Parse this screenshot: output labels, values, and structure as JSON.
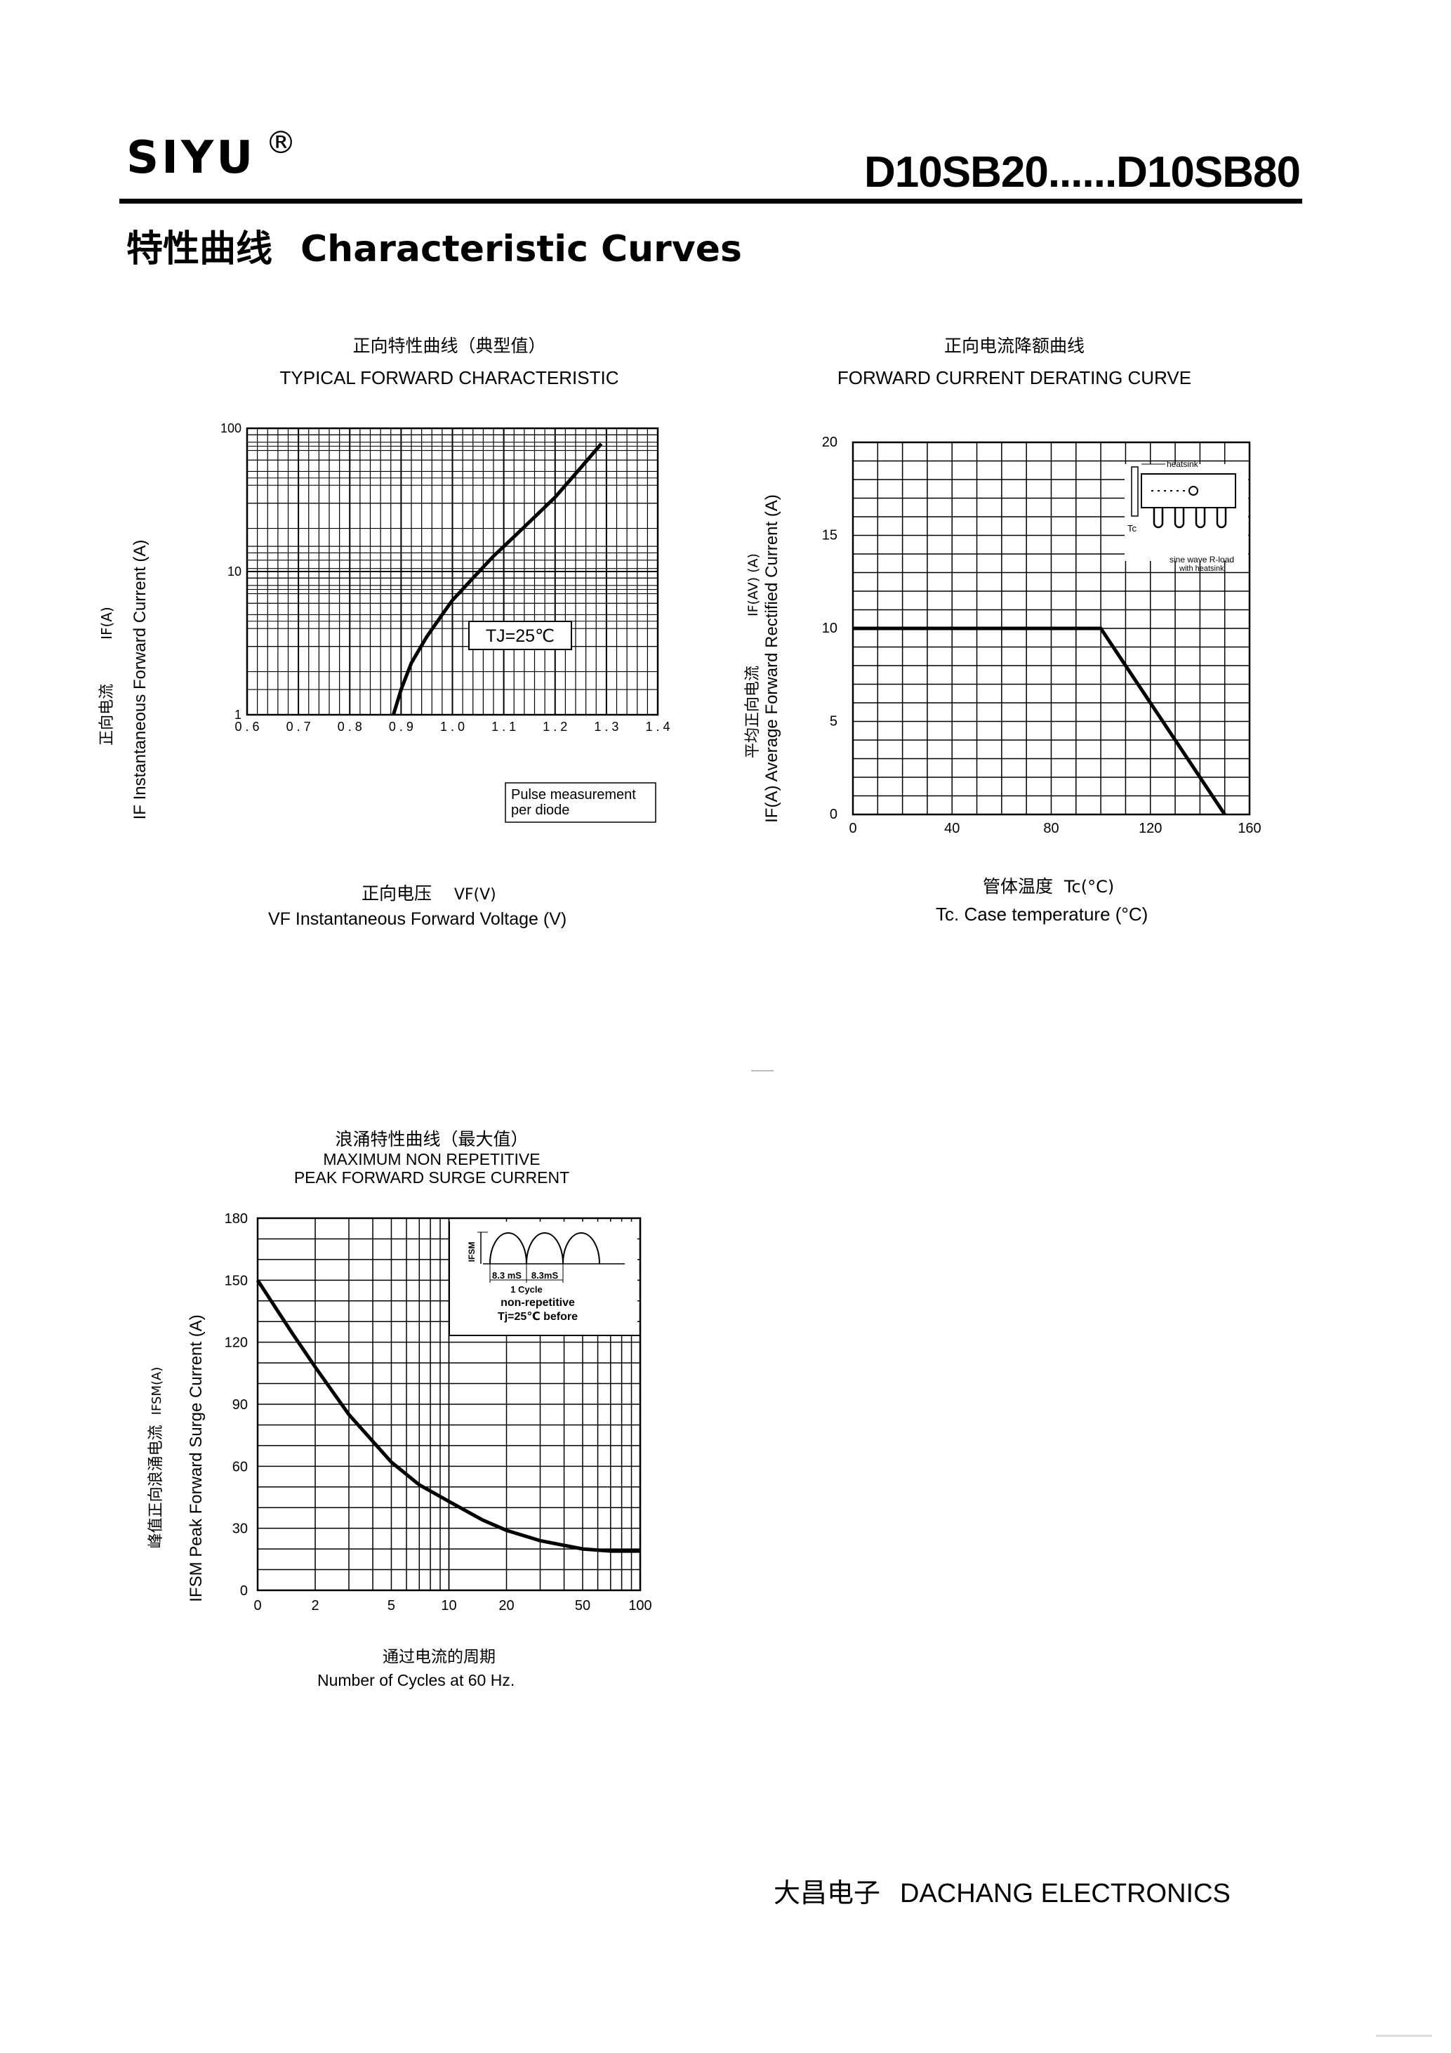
{
  "header": {
    "brand": "SIYU",
    "registered_mark": "®",
    "model_range": "D10SB20......D10SB80",
    "section_title_cn": "特性曲线",
    "section_title_en": "Characteristic Curves"
  },
  "footer": {
    "company_cn": "大昌电子",
    "company_en": "DACHANG ELECTRONICS"
  },
  "chart_data": [
    {
      "type": "line",
      "title_cn": "正向特性曲线（典型值）",
      "title": "TYPICAL FORWARD CHARACTERISTIC",
      "xlabel_cn": "正向电压",
      "xlabel_sym": "VF(V)",
      "xlabel": "VF  Instantaneous Forward Voltage (V)",
      "ylabel_cn": "正向电流",
      "ylabel_sym": "IF(A)",
      "ylabel": "IF Instantaneous Forward Current (A)",
      "x_scale": "linear",
      "y_scale": "log",
      "xlim": [
        0.6,
        1.4
      ],
      "ylim": [
        1,
        100
      ],
      "x_ticks": [
        "0.6",
        "0.7",
        "0.8",
        "0.9",
        "1.0",
        "1.1",
        "1.2",
        "1.3",
        "1.4"
      ],
      "y_ticks": [
        "1",
        "10",
        "100"
      ],
      "grid": true,
      "annotations": [
        "TJ=25℃",
        "Pulse measurement",
        "per diode"
      ],
      "series": [
        {
          "x": [
            0.885,
            0.9,
            0.92,
            0.95,
            0.98,
            1.0,
            1.04,
            1.08,
            1.12,
            1.16,
            1.2,
            1.25,
            1.29
          ],
          "y": [
            1.0,
            1.5,
            2.3,
            3.5,
            5.0,
            6.3,
            9.0,
            12.8,
            17.5,
            24.0,
            33.0,
            53.0,
            78.0
          ]
        }
      ]
    },
    {
      "type": "line",
      "title_cn": "正向电流降额曲线",
      "title": "FORWARD CURRENT DERATING CURVE",
      "xlabel_cn": "管体温度",
      "xlabel_sym": "Tc(°C)",
      "xlabel": "Tc. Case temperature (°C)",
      "ylabel_cn": "平均正向电流",
      "ylabel_sym": "IF(AV) (A)",
      "ylabel": "IF(A) Average Forward Rectified Current (A)",
      "xlim": [
        0,
        160
      ],
      "ylim": [
        0,
        20
      ],
      "x_ticks": [
        "0",
        "40",
        "80",
        "120",
        "160"
      ],
      "y_ticks": [
        "0",
        "5",
        "10",
        "15",
        "20"
      ],
      "grid": true,
      "annotations": [
        "heatsink",
        "Tc",
        "sine wave R-load",
        "with heatsink"
      ],
      "series": [
        {
          "x": [
            0,
            100,
            150
          ],
          "y": [
            10,
            10,
            0
          ]
        }
      ]
    },
    {
      "type": "line",
      "title_cn": "浪涌特性曲线（最大值）",
      "title": "MAXIMUM NON REPETITIVE",
      "subtitle": "PEAK FORWARD SURGE CURRENT",
      "xlabel_cn": "通过电流的周期",
      "xlabel": "Number  of  Cycles at 60 Hz.",
      "ylabel_cn": "峰值正向浪涌电流",
      "ylabel_sym": "IFSM(A)",
      "ylabel": "IFSM Peak Forward Surge Current (A)",
      "x_scale": "log",
      "xlim": [
        1,
        100
      ],
      "ylim": [
        0,
        180
      ],
      "x_ticks": [
        "0",
        "2",
        "5",
        "10",
        "20",
        "50",
        "100"
      ],
      "y_ticks": [
        "0",
        "30",
        "60",
        "90",
        "120",
        "150",
        "180"
      ],
      "grid": true,
      "annotations": [
        "IFSM",
        "8.3 mS",
        "8.3mS",
        "1 Cycle",
        "non-repetitive",
        "Tj=25℃  before"
      ],
      "series": [
        {
          "x": [
            1,
            1.5,
            2,
            3,
            5,
            7,
            10,
            15,
            20,
            30,
            50,
            70,
            100
          ],
          "y": [
            150,
            125,
            108,
            85,
            62,
            51,
            43,
            34,
            29,
            24,
            20,
            19,
            19
          ]
        }
      ]
    }
  ]
}
